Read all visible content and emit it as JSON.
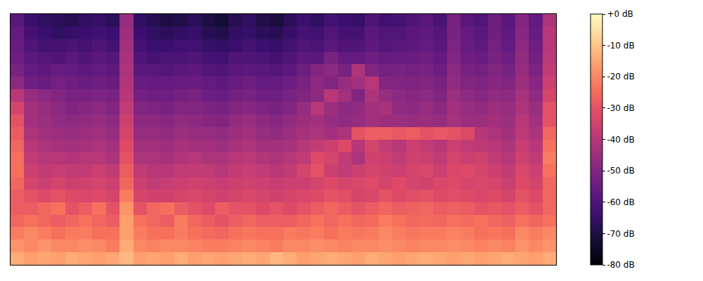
{
  "chart_data": {
    "type": "heatmap",
    "tick_labels": false,
    "colorbar_range": [
      -80,
      0
    ],
    "colorbar_ticks": [
      {
        "value": 0,
        "label": "+0 dB"
      },
      {
        "value": -10,
        "label": "-10 dB"
      },
      {
        "value": -20,
        "label": "-20 dB"
      },
      {
        "value": -30,
        "label": "-30 dB"
      },
      {
        "value": -40,
        "label": "-40 dB"
      },
      {
        "value": -50,
        "label": "-50 dB"
      },
      {
        "value": -60,
        "label": "-60 dB"
      },
      {
        "value": -70,
        "label": "-70 dB"
      },
      {
        "value": -80,
        "label": "-80 dB"
      }
    ],
    "cells": [
      [
        -58,
        -64,
        -66,
        -67,
        -68,
        -66,
        -65,
        -67,
        -46,
        -66,
        -68,
        -70,
        -69,
        -67,
        -70,
        -72,
        -68,
        -66,
        -69,
        -71,
        -67,
        -64,
        -66,
        -62,
        -64,
        -65,
        -60,
        -63,
        -62,
        -60,
        -58,
        -61,
        -52,
        -58,
        -60,
        -54,
        -58,
        -50,
        -56,
        -42
      ],
      [
        -56,
        -62,
        -64,
        -66,
        -65,
        -64,
        -63,
        -64,
        -45,
        -64,
        -66,
        -67,
        -66,
        -65,
        -68,
        -69,
        -66,
        -65,
        -67,
        -68,
        -65,
        -62,
        -63,
        -60,
        -62,
        -62,
        -58,
        -60,
        -60,
        -58,
        -57,
        -59,
        -52,
        -56,
        -58,
        -54,
        -57,
        -49,
        -55,
        -40
      ],
      [
        -55,
        -60,
        -62,
        -62,
        -61,
        -62,
        -60,
        -62,
        -44,
        -62,
        -64,
        -64,
        -63,
        -63,
        -65,
        -66,
        -64,
        -62,
        -64,
        -65,
        -62,
        -60,
        -61,
        -58,
        -60,
        -60,
        -57,
        -59,
        -58,
        -57,
        -56,
        -58,
        -51,
        -55,
        -57,
        -53,
        -56,
        -48,
        -54,
        -40
      ],
      [
        -54,
        -58,
        -59,
        -60,
        -58,
        -60,
        -58,
        -59,
        -43,
        -60,
        -62,
        -61,
        -61,
        -60,
        -62,
        -63,
        -60,
        -60,
        -61,
        -62,
        -60,
        -57,
        -58,
        -52,
        -56,
        -56,
        -54,
        -56,
        -55,
        -55,
        -54,
        -56,
        -50,
        -54,
        -55,
        -52,
        -54,
        -47,
        -53,
        -39
      ],
      [
        -52,
        -56,
        -57,
        -55,
        -56,
        -57,
        -56,
        -57,
        -42,
        -58,
        -58,
        -59,
        -58,
        -57,
        -59,
        -60,
        -58,
        -57,
        -58,
        -59,
        -57,
        -54,
        -50,
        -48,
        -52,
        -42,
        -50,
        -53,
        -52,
        -53,
        -52,
        -54,
        -48,
        -52,
        -53,
        -50,
        -52,
        -46,
        -51,
        -38
      ],
      [
        -48,
        -54,
        -55,
        -53,
        -54,
        -55,
        -54,
        -55,
        -41,
        -55,
        -56,
        -56,
        -55,
        -55,
        -56,
        -57,
        -55,
        -54,
        -56,
        -56,
        -54,
        -52,
        -48,
        -50,
        -46,
        -44,
        -40,
        -50,
        -50,
        -51,
        -50,
        -52,
        -47,
        -50,
        -51,
        -49,
        -50,
        -45,
        -49,
        -36
      ],
      [
        -40,
        -46,
        -48,
        -50,
        -52,
        -52,
        -51,
        -52,
        -40,
        -53,
        -54,
        -54,
        -53,
        -52,
        -54,
        -55,
        -53,
        -52,
        -54,
        -54,
        -52,
        -50,
        -48,
        -40,
        -44,
        -50,
        -42,
        -46,
        -48,
        -49,
        -48,
        -50,
        -45,
        -48,
        -49,
        -47,
        -48,
        -43,
        -47,
        -34
      ],
      [
        -34,
        -44,
        -46,
        -48,
        -50,
        -49,
        -48,
        -50,
        -38,
        -50,
        -51,
        -52,
        -50,
        -50,
        -51,
        -52,
        -50,
        -49,
        -51,
        -52,
        -50,
        -46,
        -40,
        -45,
        -48,
        -47,
        -44,
        -43,
        -47,
        -48,
        -46,
        -48,
        -44,
        -46,
        -47,
        -45,
        -46,
        -42,
        -45,
        -30
      ],
      [
        -30,
        -44,
        -45,
        -47,
        -48,
        -47,
        -46,
        -48,
        -36,
        -48,
        -48,
        -49,
        -47,
        -48,
        -49,
        -50,
        -47,
        -46,
        -48,
        -49,
        -47,
        -45,
        -44,
        -46,
        -47,
        -46,
        -44,
        -45,
        -45,
        -46,
        -45,
        -46,
        -43,
        -45,
        -45,
        -44,
        -45,
        -40,
        -44,
        -30
      ],
      [
        -28,
        -42,
        -44,
        -45,
        -46,
        -45,
        -44,
        -46,
        -34,
        -46,
        -46,
        -47,
        -45,
        -46,
        -46,
        -47,
        -45,
        -44,
        -46,
        -47,
        -45,
        -43,
        -42,
        -44,
        -42,
        -30,
        -28,
        -28,
        -29,
        -28,
        -30,
        -29,
        -30,
        -32,
        -40,
        -42,
        -44,
        -39,
        -42,
        -26
      ],
      [
        -26,
        -40,
        -42,
        -43,
        -44,
        -43,
        -42,
        -44,
        -32,
        -44,
        -44,
        -45,
        -43,
        -44,
        -44,
        -45,
        -43,
        -42,
        -44,
        -44,
        -43,
        -40,
        -38,
        -36,
        -32,
        -40,
        -34,
        -38,
        -40,
        -36,
        -38,
        -40,
        -36,
        -38,
        -39,
        -40,
        -42,
        -37,
        -40,
        -24
      ],
      [
        -24,
        -38,
        -40,
        -40,
        -41,
        -40,
        -40,
        -42,
        -30,
        -42,
        -42,
        -43,
        -41,
        -40,
        -42,
        -42,
        -40,
        -39,
        -41,
        -42,
        -40,
        -38,
        -32,
        -34,
        -38,
        -42,
        -35,
        -36,
        -38,
        -35,
        -36,
        -38,
        -34,
        -36,
        -35,
        -38,
        -40,
        -35,
        -38,
        -22
      ],
      [
        -24,
        -36,
        -38,
        -37,
        -38,
        -38,
        -36,
        -38,
        -28,
        -38,
        -40,
        -40,
        -38,
        -38,
        -38,
        -40,
        -38,
        -37,
        -38,
        -40,
        -38,
        -34,
        -30,
        -36,
        -38,
        -36,
        -34,
        -35,
        -36,
        -34,
        -33,
        -36,
        -33,
        -32,
        -34,
        -36,
        -38,
        -33,
        -36,
        -24
      ],
      [
        -26,
        -34,
        -36,
        -34,
        -36,
        -35,
        -34,
        -36,
        -26,
        -36,
        -38,
        -37,
        -36,
        -35,
        -36,
        -37,
        -36,
        -35,
        -36,
        -37,
        -36,
        -36,
        -34,
        -32,
        -34,
        -33,
        -32,
        -34,
        -32,
        -34,
        -35,
        -33,
        -32,
        -34,
        -33,
        -34,
        -36,
        -32,
        -34,
        -26
      ],
      [
        -28,
        -30,
        -32,
        -30,
        -32,
        -33,
        -32,
        -34,
        -22,
        -34,
        -35,
        -35,
        -34,
        -33,
        -34,
        -35,
        -34,
        -33,
        -34,
        -35,
        -34,
        -33,
        -32,
        -30,
        -31,
        -34,
        -33,
        -30,
        -32,
        -31,
        -30,
        -32,
        -31,
        -32,
        -33,
        -32,
        -34,
        -30,
        -32,
        -26
      ],
      [
        -28,
        -28,
        -26,
        -24,
        -30,
        -28,
        -24,
        -30,
        -18,
        -30,
        -26,
        -24,
        -28,
        -30,
        -32,
        -28,
        -30,
        -30,
        -32,
        -30,
        -32,
        -30,
        -28,
        -26,
        -28,
        -30,
        -28,
        -26,
        -28,
        -27,
        -26,
        -28,
        -27,
        -28,
        -30,
        -29,
        -30,
        -28,
        -30,
        -26
      ],
      [
        -26,
        -24,
        -26,
        -28,
        -26,
        -24,
        -26,
        -28,
        -16,
        -24,
        -26,
        -28,
        -22,
        -26,
        -28,
        -30,
        -28,
        -26,
        -28,
        -28,
        -28,
        -26,
        -24,
        -26,
        -24,
        -26,
        -25,
        -22,
        -24,
        -26,
        -25,
        -26,
        -24,
        -25,
        -24,
        -26,
        -27,
        -24,
        -26,
        -24
      ],
      [
        -22,
        -20,
        -22,
        -24,
        -22,
        -22,
        -24,
        -24,
        -16,
        -22,
        -24,
        -24,
        -22,
        -24,
        -25,
        -26,
        -24,
        -23,
        -24,
        -24,
        -22,
        -23,
        -22,
        -24,
        -22,
        -23,
        -22,
        -20,
        -22,
        -23,
        -22,
        -22,
        -21,
        -22,
        -24,
        -23,
        -24,
        -20,
        -22,
        -20
      ],
      [
        -18,
        -20,
        -18,
        -20,
        -20,
        -19,
        -20,
        -22,
        -14,
        -20,
        -21,
        -20,
        -20,
        -21,
        -22,
        -22,
        -21,
        -20,
        -21,
        -22,
        -20,
        -20,
        -19,
        -20,
        -21,
        -20,
        -20,
        -19,
        -20,
        -21,
        -20,
        -20,
        -19,
        -20,
        -21,
        -20,
        -21,
        -18,
        -20,
        -18
      ],
      [
        -14,
        -16,
        -15,
        -16,
        -14,
        -15,
        -16,
        -15,
        -12,
        -16,
        -15,
        -16,
        -14,
        -16,
        -15,
        -16,
        -15,
        -14,
        -15,
        -12,
        -14,
        -16,
        -15,
        -14,
        -15,
        -16,
        -14,
        -15,
        -16,
        -15,
        -14,
        -15,
        -16,
        -15,
        -16,
        -15,
        -14,
        -15,
        -16,
        -14
      ]
    ]
  }
}
